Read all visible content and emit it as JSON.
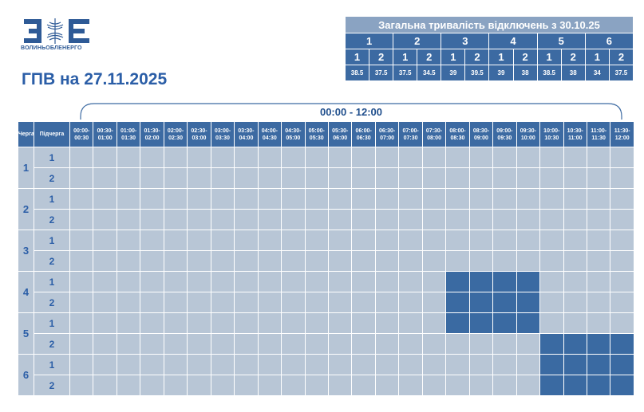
{
  "header": {
    "logo_caption": "ВОЛИНЬОБЛЕНЕРГО",
    "title": "ГПВ на 27.11.2025"
  },
  "summary": {
    "title": "Загальна тривалість відключень з 30.10.25",
    "queues": [
      "1",
      "2",
      "3",
      "4",
      "5",
      "6"
    ],
    "subqueues": [
      "1",
      "2",
      "1",
      "2",
      "1",
      "2",
      "1",
      "2",
      "1",
      "2",
      "1",
      "2"
    ],
    "values": [
      "38.5",
      "37.5",
      "37.5",
      "34.5",
      "39",
      "39.5",
      "39",
      "38",
      "38.5",
      "38",
      "34",
      "37.5"
    ]
  },
  "schedule": {
    "period": "00:00 - 12:00",
    "col_queue": "Черга",
    "col_subqueue": "Підчерга",
    "slots": [
      "00:00-00:30",
      "00:30-01:00",
      "01:00-01:30",
      "01:30-02:00",
      "02:00-02:30",
      "02:30-03:00",
      "03:00-03:30",
      "03:30-04:00",
      "04:00-04:30",
      "04:30-05:00",
      "05:00-05:30",
      "05:30-06:00",
      "06:00-06:30",
      "06:30-07:00",
      "07:00-07:30",
      "07:30-08:00",
      "08:00-08:30",
      "08:30-09:00",
      "09:00-09:30",
      "09:30-10:00",
      "10:00-10:30",
      "10:30-11:00",
      "11:00-11:30",
      "11:30-12:00"
    ],
    "rows": [
      {
        "queue": "1",
        "subqueue": "1",
        "outages": []
      },
      {
        "queue": "1",
        "subqueue": "2",
        "outages": []
      },
      {
        "queue": "2",
        "subqueue": "1",
        "outages": []
      },
      {
        "queue": "2",
        "subqueue": "2",
        "outages": []
      },
      {
        "queue": "3",
        "subqueue": "1",
        "outages": []
      },
      {
        "queue": "3",
        "subqueue": "2",
        "outages": []
      },
      {
        "queue": "4",
        "subqueue": "1",
        "outages": [
          16,
          17,
          18,
          19
        ]
      },
      {
        "queue": "4",
        "subqueue": "2",
        "outages": [
          16,
          17,
          18,
          19
        ]
      },
      {
        "queue": "5",
        "subqueue": "1",
        "outages": [
          16,
          17,
          18,
          19
        ]
      },
      {
        "queue": "5",
        "subqueue": "2",
        "outages": [
          20,
          21,
          22,
          23
        ]
      },
      {
        "queue": "6",
        "subqueue": "1",
        "outages": [
          20,
          21,
          22,
          23
        ]
      },
      {
        "queue": "6",
        "subqueue": "2",
        "outages": [
          20,
          21,
          22,
          23
        ]
      }
    ]
  },
  "colors": {
    "accent": "#2b5ea7",
    "header_bg": "#3c6aa2",
    "cell_bg": "#b8c6d6",
    "outage_bg": "#3a6aa2",
    "summary_title_bg": "#8aa3c2"
  }
}
